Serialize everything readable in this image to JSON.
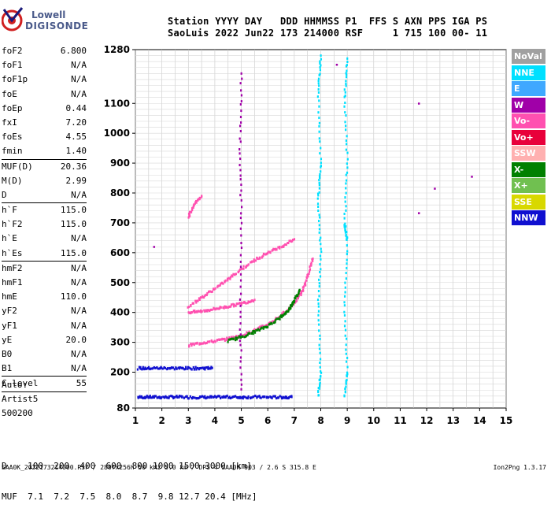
{
  "logo": {
    "line1": "Lowell",
    "line2": "DIGISONDE"
  },
  "header": {
    "line1": "Station YYYY DAY   DDD HHMMSS P1  FFS S AXN PPS IGA PS",
    "line2": "SaoLuis 2022 Jun22 173 214000 RSF     1 715 100 00- 11"
  },
  "params": [
    {
      "k": "foF2",
      "v": "6.800"
    },
    {
      "k": "foF1",
      "v": "N/A"
    },
    {
      "k": "foF1p",
      "v": "N/A"
    },
    {
      "k": "foE",
      "v": "N/A"
    },
    {
      "k": "foEp",
      "v": "0.44"
    },
    {
      "k": "fxI",
      "v": "7.20"
    },
    {
      "k": "foEs",
      "v": "4.55"
    },
    {
      "k": "fmin",
      "v": "1.40",
      "sep": true
    },
    {
      "k": "MUF(D)",
      "v": "20.36"
    },
    {
      "k": "M(D)",
      "v": "2.99"
    },
    {
      "k": "D",
      "v": "N/A",
      "sep": true
    },
    {
      "k": "h`F",
      "v": "115.0"
    },
    {
      "k": "h`F2",
      "v": "115.0"
    },
    {
      "k": "h`E",
      "v": "N/A"
    },
    {
      "k": "h`Es",
      "v": "115.0",
      "sep": true
    },
    {
      "k": "hmF2",
      "v": "N/A"
    },
    {
      "k": "hmF1",
      "v": "N/A"
    },
    {
      "k": "hmE",
      "v": "110.0"
    },
    {
      "k": "yF2",
      "v": "N/A"
    },
    {
      "k": "yF1",
      "v": "N/A"
    },
    {
      "k": "yE",
      "v": "20.0"
    },
    {
      "k": "B0",
      "v": "N/A"
    },
    {
      "k": "B1",
      "v": "N/A",
      "sep": true
    },
    {
      "k": "C-level",
      "v": "55",
      "sep": true
    }
  ],
  "auto": {
    "line1": "Auto:",
    "line2": "Artist5",
    "line3": "500200"
  },
  "table": {
    "row1": "D    100  200  400  600  800 1000 1500 3000 [km]",
    "row2": "MUF  7.1  7.2  7.5  8.0  8.7  9.8 12.7 20.4 [MHz]"
  },
  "footer": "SAA0K_2022173214000.RSF / 280fx256h 50 kHz 5.0 km / DPS-4 SAA0K 903 / 2.6 S 315.8 E",
  "version": "Ion2Png 1.3.17",
  "legend": [
    {
      "label": "NoVal",
      "color": "#a0a0a0"
    },
    {
      "label": "NNE",
      "color": "#00e0ff"
    },
    {
      "label": "E",
      "color": "#3fa8ff"
    },
    {
      "label": "W",
      "color": "#a000a8"
    },
    {
      "label": "Vo-",
      "color": "#ff50b0"
    },
    {
      "label": "Vo+",
      "color": "#e8003a"
    },
    {
      "label": "SSW",
      "color": "#ffb0b0"
    },
    {
      "label": "X-",
      "color": "#008000"
    },
    {
      "label": "X+",
      "color": "#70c050"
    },
    {
      "label": "SSE",
      "color": "#d8d800"
    },
    {
      "label": "NNW",
      "color": "#1010d0"
    }
  ],
  "chart_data": {
    "type": "scatter",
    "title": "",
    "xlabel": "",
    "ylabel": "",
    "xlim": [
      1,
      15
    ],
    "ylim": [
      80,
      1280
    ],
    "grid": true,
    "x_ticks": [
      1,
      2,
      3,
      4,
      5,
      6,
      7,
      8,
      9,
      10,
      11,
      12,
      13,
      14,
      15
    ],
    "y_ticks": [
      80,
      200,
      300,
      400,
      500,
      600,
      700,
      800,
      900,
      1000,
      1100,
      1280
    ],
    "traces": [
      {
        "name": "Es band",
        "color": "#1010d0",
        "points": [
          [
            1.1,
            116
          ],
          [
            1.5,
            117
          ],
          [
            2.0,
            116
          ],
          [
            2.5,
            117
          ],
          [
            3.0,
            116
          ],
          [
            3.5,
            116
          ],
          [
            4.0,
            116
          ],
          [
            4.5,
            117
          ],
          [
            5.0,
            116
          ],
          [
            5.5,
            117
          ],
          [
            6.0,
            116
          ],
          [
            6.5,
            116
          ],
          [
            6.9,
            117
          ]
        ]
      },
      {
        "name": "Es 2nd hop",
        "color": "#1010d0",
        "points": [
          [
            1.1,
            213
          ],
          [
            1.5,
            213
          ],
          [
            2.0,
            214
          ],
          [
            2.5,
            213
          ],
          [
            3.0,
            213
          ],
          [
            3.5,
            213
          ],
          [
            3.9,
            214
          ]
        ]
      },
      {
        "name": "F O-trace",
        "color": "#ff50b0",
        "points": [
          [
            3.0,
            290
          ],
          [
            3.5,
            298
          ],
          [
            4.0,
            304
          ],
          [
            4.5,
            312
          ],
          [
            5.0,
            322
          ],
          [
            5.5,
            340
          ],
          [
            6.0,
            360
          ],
          [
            6.5,
            390
          ],
          [
            7.0,
            430
          ],
          [
            7.3,
            470
          ],
          [
            7.5,
            520
          ],
          [
            7.7,
            580
          ]
        ]
      },
      {
        "name": "F X-trace",
        "color": "#008000",
        "points": [
          [
            4.5,
            305
          ],
          [
            5.0,
            318
          ],
          [
            5.5,
            335
          ],
          [
            6.0,
            355
          ],
          [
            6.5,
            385
          ],
          [
            6.8,
            410
          ],
          [
            7.0,
            440
          ],
          [
            7.2,
            475
          ]
        ]
      },
      {
        "name": "F O 2nd hop",
        "color": "#ff50b0",
        "points": [
          [
            3.0,
            420
          ],
          [
            3.5,
            450
          ],
          [
            4.0,
            480
          ],
          [
            4.5,
            510
          ],
          [
            5.0,
            545
          ],
          [
            5.5,
            575
          ],
          [
            6.0,
            600
          ],
          [
            6.5,
            620
          ],
          [
            7.0,
            645
          ]
        ]
      },
      {
        "name": "2nd hop lower",
        "color": "#ff50b0",
        "points": [
          [
            3.0,
            400
          ],
          [
            3.5,
            404
          ],
          [
            4.0,
            412
          ],
          [
            4.5,
            420
          ],
          [
            5.0,
            430
          ],
          [
            5.5,
            442
          ]
        ]
      },
      {
        "name": "F 3rd hop",
        "color": "#ff50b0",
        "points": [
          [
            3.0,
            720
          ],
          [
            3.2,
            760
          ],
          [
            3.5,
            790
          ]
        ]
      },
      {
        "name": "freq 8.0",
        "color": "#00e0ff",
        "points": [
          [
            7.9,
            120
          ],
          [
            8.0,
            200
          ],
          [
            7.9,
            420
          ],
          [
            8.0,
            600
          ],
          [
            7.9,
            780
          ],
          [
            8.0,
            900
          ],
          [
            7.9,
            1140
          ],
          [
            8.0,
            1260
          ]
        ]
      },
      {
        "name": "freq 9.0",
        "color": "#00e0ff",
        "points": [
          [
            8.9,
            120
          ],
          [
            9.0,
            200
          ],
          [
            8.9,
            420
          ],
          [
            9.0,
            640
          ],
          [
            8.9,
            700
          ],
          [
            9.0,
            900
          ],
          [
            8.9,
            1120
          ],
          [
            9.0,
            1250
          ]
        ]
      },
      {
        "name": "freq 5.0",
        "color": "#a000a8",
        "points": [
          [
            5.0,
            140
          ],
          [
            4.95,
            400
          ],
          [
            5.0,
            700
          ],
          [
            4.95,
            950
          ],
          [
            5.0,
            1200
          ]
        ]
      },
      {
        "name": "sparse",
        "color": "#a000a8",
        "points": [
          [
            1.7,
            620
          ],
          [
            11.7,
            1100
          ],
          [
            12.3,
            815
          ],
          [
            11.7,
            733
          ],
          [
            13.7,
            855
          ],
          [
            8.6,
            1230
          ]
        ]
      }
    ]
  }
}
